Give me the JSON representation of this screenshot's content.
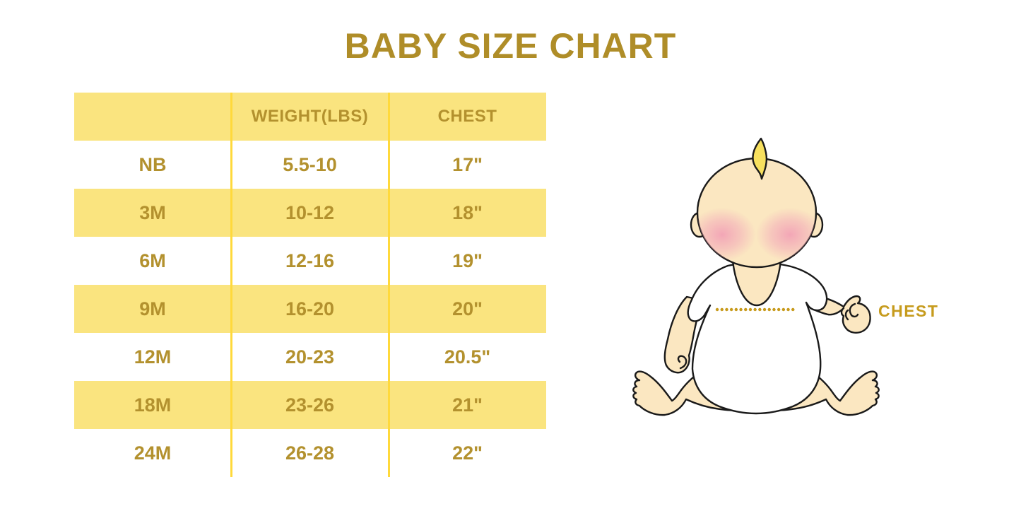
{
  "title": "BABY SIZE CHART",
  "table": {
    "columns": [
      "",
      "WEIGHT(LBS)",
      "CHEST"
    ],
    "rows": [
      {
        "size": "NB",
        "weight": "5.5-10",
        "chest": "17\""
      },
      {
        "size": "3M",
        "weight": "10-12",
        "chest": "18\""
      },
      {
        "size": "6M",
        "weight": "12-16",
        "chest": "19\""
      },
      {
        "size": "9M",
        "weight": "16-20",
        "chest": "20\""
      },
      {
        "size": "12M",
        "weight": "20-23",
        "chest": "20.5\""
      },
      {
        "size": "18M",
        "weight": "23-26",
        "chest": "21\""
      },
      {
        "size": "24M",
        "weight": "26-28",
        "chest": "22\""
      }
    ]
  },
  "illustration": {
    "chest_label": "CHEST"
  },
  "chart_data": {
    "type": "table",
    "title": "BABY SIZE CHART",
    "columns": [
      "",
      "WEIGHT(LBS)",
      "CHEST"
    ],
    "rows": [
      [
        "NB",
        "5.5-10",
        "17\""
      ],
      [
        "3M",
        "10-12",
        "18\""
      ],
      [
        "6M",
        "12-16",
        "19\""
      ],
      [
        "9M",
        "16-20",
        "20\""
      ],
      [
        "12M",
        "20-23",
        "20.5\""
      ],
      [
        "18M",
        "23-26",
        "21\""
      ],
      [
        "24M",
        "26-28",
        "22\""
      ]
    ]
  },
  "colors": {
    "background": "#FFFFFF",
    "title_text": "#AF8D28",
    "table_text": "#B3912E",
    "row_yellow": "#FAE47F",
    "divider_yellow": "#FFD93B",
    "chest_label": "#C69B1D",
    "dotted_line": "#C79A1B",
    "baby_skin": "#FBE7C1",
    "baby_blush": "#F2A5B8",
    "baby_hair": "#F7E05E",
    "outline": "#1A1A1A"
  }
}
